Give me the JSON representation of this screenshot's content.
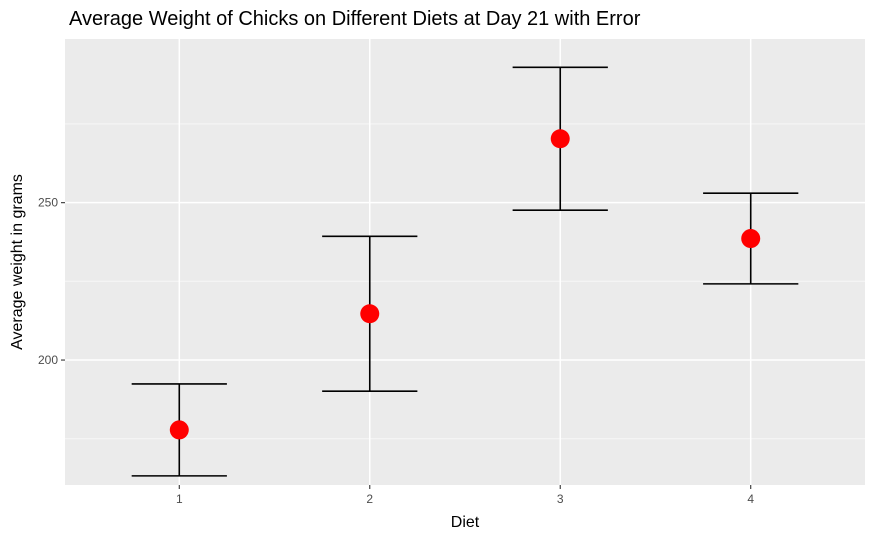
{
  "chart_data": {
    "type": "scatter",
    "title": "Average Weight of Chicks on Different Diets at Day 21 with Error",
    "xlabel": "Diet",
    "ylabel": "Average weight in grams",
    "categories": [
      "1",
      "2",
      "3",
      "4"
    ],
    "series": [
      {
        "values": [
          177.8,
          214.7,
          270.3,
          238.6
        ],
        "error_lower": [
          163.2,
          190.1,
          247.6,
          224.2
        ],
        "error_upper": [
          192.4,
          239.3,
          293.0,
          253.0
        ]
      }
    ],
    "ylim": [
      160.3,
      302.0
    ],
    "yticks": [
      200,
      250
    ],
    "grid": true,
    "legend": "none",
    "colors": {
      "point": "#ff0000",
      "errorbar": "#000000",
      "panel_background": "#ebebeb",
      "grid_major": "#ffffff",
      "grid_minor": "#f5f5f5"
    }
  }
}
